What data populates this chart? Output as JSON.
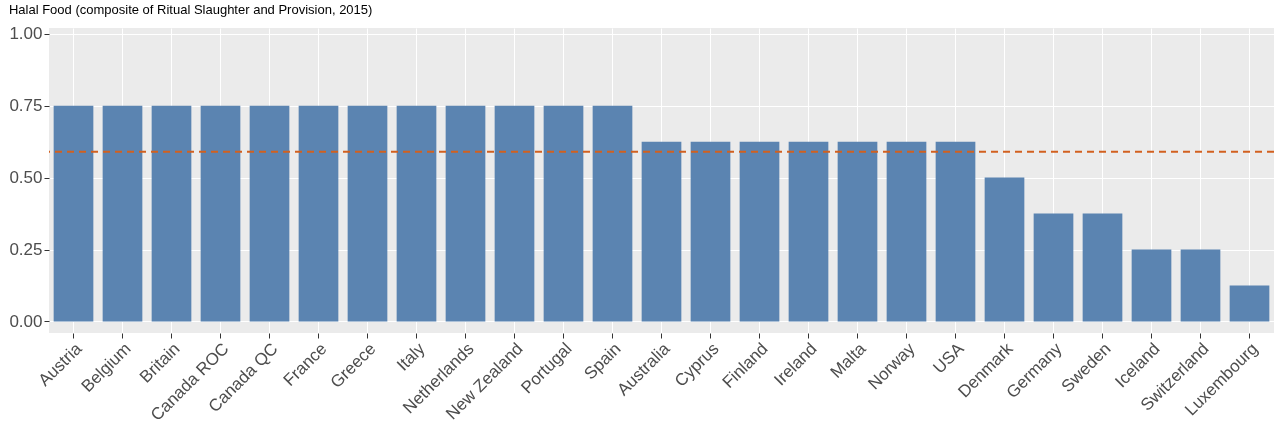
{
  "chart_data": {
    "type": "bar",
    "title": "Halal Food (composite of Ritual Slaughter and Provision, 2015)",
    "categories": [
      "Austria",
      "Belgium",
      "Britain",
      "Canada ROC",
      "Canada QC",
      "France",
      "Greece",
      "Italy",
      "Netherlands",
      "New Zealand",
      "Portugal",
      "Spain",
      "Australia",
      "Cyprus",
      "Finland",
      "Ireland",
      "Malta",
      "Norway",
      "USA",
      "Denmark",
      "Germany",
      "Sweden",
      "Iceland",
      "Switzerland",
      "Luxembourg"
    ],
    "values": [
      0.75,
      0.75,
      0.75,
      0.75,
      0.75,
      0.75,
      0.75,
      0.75,
      0.75,
      0.75,
      0.75,
      0.75,
      0.625,
      0.625,
      0.625,
      0.625,
      0.625,
      0.625,
      0.625,
      0.5,
      0.375,
      0.375,
      0.25,
      0.25,
      0.125
    ],
    "color": "#5b84b1",
    "ylim": [
      -0.04,
      1.02
    ],
    "yticks": [
      {
        "value": 0,
        "label": "0.00"
      },
      {
        "value": 0.25,
        "label": "0.25"
      },
      {
        "value": 0.5,
        "label": "0.50"
      },
      {
        "value": 0.75,
        "label": "0.75"
      },
      {
        "value": 1,
        "label": "1.00"
      }
    ],
    "ref_lines": [
      {
        "axis": "y",
        "value": 0.59,
        "label": null,
        "color": "#d2601f",
        "line_style": "dashed"
      }
    ],
    "grid": true
  }
}
